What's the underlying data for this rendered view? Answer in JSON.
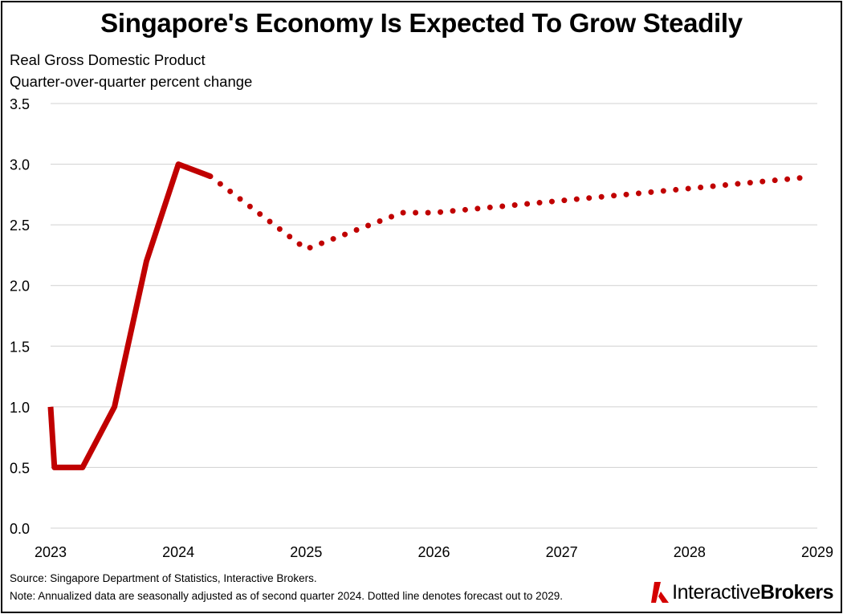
{
  "header": {
    "title": "Singapore's Economy Is Expected To Grow Steadily",
    "subtitle_line1": "Real Gross Domestic Product",
    "subtitle_line2": "Quarter-over-quarter percent change"
  },
  "footer": {
    "source": "Source: Singapore Department of Statistics, Interactive Brokers.",
    "note": "Note: Annualized data are seasonally adjusted as of second quarter 2024. Dotted line denotes forecast out to 2029."
  },
  "brand": {
    "name_regular": "Interactive",
    "name_bold": "Brokers",
    "accent_color": "#d40000"
  },
  "chart_data": {
    "type": "line",
    "x_ticks": [
      "2023",
      "2024",
      "2025",
      "2026",
      "2027",
      "2028",
      "2029"
    ],
    "y_ticks": [
      "0.0",
      "0.5",
      "1.0",
      "1.5",
      "2.0",
      "2.5",
      "3.0",
      "3.5"
    ],
    "xlim": [
      2023,
      2029
    ],
    "ylim": [
      0,
      3.5
    ],
    "grid": true,
    "line_color": "#c00000",
    "series": [
      {
        "style": "solid",
        "x": [
          2023.0,
          2023.03,
          2023.25,
          2023.5,
          2023.75,
          2024.0,
          2024.25
        ],
        "y": [
          1.0,
          0.5,
          0.5,
          1.0,
          2.2,
          3.0,
          2.9
        ]
      },
      {
        "style": "dotted",
        "x": [
          2024.25,
          2025.0,
          2025.25,
          2025.5,
          2025.75,
          2026.0,
          2026.5,
          2027.0,
          2027.5,
          2028.0,
          2028.5,
          2028.9
        ],
        "y": [
          2.9,
          2.3,
          2.4,
          2.5,
          2.6,
          2.6,
          2.65,
          2.7,
          2.75,
          2.8,
          2.85,
          2.89
        ]
      }
    ]
  }
}
